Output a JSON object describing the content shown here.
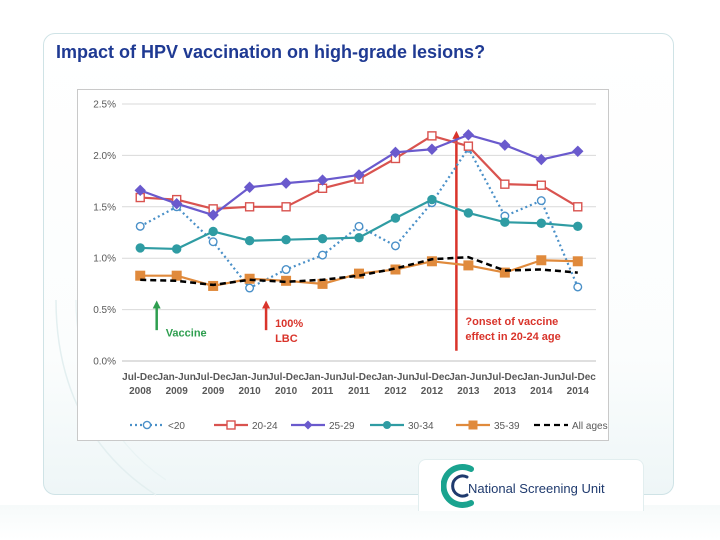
{
  "slide": {
    "title": "Impact of HPV vaccination on high-grade lesions?",
    "logo_text": "National Screening Unit",
    "logo_icon": "nsu-logo-icon"
  },
  "chart_data": {
    "type": "line",
    "title": "",
    "xlabel": "",
    "ylabel": "",
    "ylim": [
      0,
      2.5
    ],
    "yticks": [
      "0.0%",
      "0.5%",
      "1.0%",
      "1.5%",
      "2.0%",
      "2.5%"
    ],
    "grid": true,
    "legend_position": "bottom",
    "categories": [
      [
        "Jul-Dec",
        "2008"
      ],
      [
        "Jan-Jun",
        "2009"
      ],
      [
        "Jul-Dec",
        "2009"
      ],
      [
        "Jan-Jun",
        "2010"
      ],
      [
        "Jul-Dec",
        "2010"
      ],
      [
        "Jan-Jun",
        "2011"
      ],
      [
        "Jul-Dec",
        "2011"
      ],
      [
        "Jan-Jun",
        "2012"
      ],
      [
        "Jul-Dec",
        "2012"
      ],
      [
        "Jan-Jun",
        "2013"
      ],
      [
        "Jul-Dec",
        "2013"
      ],
      [
        "Jan-Jun",
        "2014"
      ],
      [
        "Jul-Dec",
        "2014"
      ]
    ],
    "series": [
      {
        "name": "<20",
        "color": "#4a90c8",
        "style": "dotted",
        "marker": "open-circle",
        "values": [
          1.31,
          1.5,
          1.16,
          0.71,
          0.89,
          1.03,
          1.31,
          1.12,
          1.54,
          2.07,
          1.41,
          1.56,
          0.72
        ]
      },
      {
        "name": "20-24",
        "color": "#d9534f",
        "style": "solid",
        "marker": "open-square",
        "values": [
          1.59,
          1.57,
          1.48,
          1.5,
          1.5,
          1.68,
          1.77,
          1.97,
          2.19,
          2.09,
          1.72,
          1.71,
          1.5
        ]
      },
      {
        "name": "25-29",
        "color": "#6a5acd",
        "style": "solid",
        "marker": "diamond",
        "values": [
          1.66,
          1.53,
          1.42,
          1.69,
          1.73,
          1.76,
          1.81,
          2.03,
          2.06,
          2.2,
          2.1,
          1.96,
          2.04
        ]
      },
      {
        "name": "30-34",
        "color": "#2f9ca3",
        "style": "solid",
        "marker": "circle",
        "values": [
          1.1,
          1.09,
          1.26,
          1.17,
          1.18,
          1.19,
          1.2,
          1.39,
          1.57,
          1.44,
          1.35,
          1.34,
          1.31
        ]
      },
      {
        "name": "35-39",
        "color": "#e08a3c",
        "style": "solid",
        "marker": "square",
        "values": [
          0.83,
          0.83,
          0.73,
          0.8,
          0.78,
          0.75,
          0.85,
          0.89,
          0.97,
          0.93,
          0.86,
          0.98,
          0.97
        ]
      },
      {
        "name": "All ages",
        "color": "#000000",
        "style": "dashed",
        "marker": "none",
        "values": [
          0.79,
          0.78,
          0.74,
          0.79,
          0.77,
          0.79,
          0.83,
          0.9,
          0.99,
          1.01,
          0.88,
          0.89,
          0.86
        ]
      }
    ],
    "annotations": [
      {
        "id": "vaccine",
        "lines": [
          "Vaccine"
        ],
        "color": "#2e9e4f",
        "at_index": 1,
        "arrow_from": 0.3,
        "arrow_to": 0.55
      },
      {
        "id": "lbc",
        "lines": [
          "100%",
          "LBC"
        ],
        "color": "#d9342b",
        "at_index": 4,
        "arrow_from": 0.3,
        "arrow_to": 0.55
      },
      {
        "id": "onset",
        "lines": [
          "?onset of vaccine",
          "effect in 20-24 age"
        ],
        "color": "#d9342b",
        "at_index": 9,
        "arrow_from": 0.1,
        "arrow_to": 2.2
      }
    ]
  }
}
